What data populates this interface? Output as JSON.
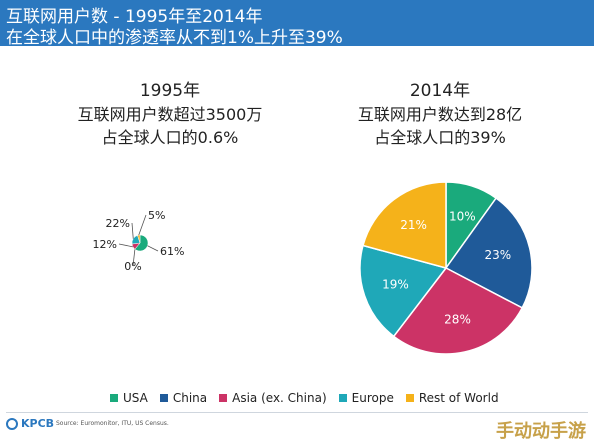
{
  "header": {
    "title_line1": "互联网用户数 - 1995年至2014年",
    "title_line2": "在全球人口中的渗透率从不到1%上升至39%"
  },
  "colors": {
    "header_bg": "#2b78bf",
    "USA": "#1aaa7c",
    "China": "#1f5a99",
    "Asia (ex. China)": "#cc3366",
    "Europe": "#1fa8b8",
    "Rest of World": "#f5b21a"
  },
  "chart_data": [
    {
      "type": "pie",
      "title": "1995年",
      "subtitle": [
        "互联网用户数超过3500万",
        "占全球人口的0.6%"
      ],
      "categories": [
        "USA",
        "China",
        "Asia (ex. China)",
        "Europe",
        "Rest of World"
      ],
      "values": [
        61,
        0,
        12,
        22,
        5
      ],
      "labels": [
        "61%",
        "0%",
        "12%",
        "22%",
        "5%"
      ]
    },
    {
      "type": "pie",
      "title": "2014年",
      "subtitle": [
        "互联网用户数达到28亿",
        "占全球人口的39%"
      ],
      "categories": [
        "USA",
        "China",
        "Asia (ex. China)",
        "Europe",
        "Rest of World"
      ],
      "values": [
        10,
        23,
        28,
        19,
        21
      ],
      "labels": [
        "10%",
        "23%",
        "28%",
        "19%",
        "21%"
      ]
    }
  ],
  "legend": {
    "entries": [
      "USA",
      "China",
      "Asia (ex. China)",
      "Europe",
      "Rest of World"
    ]
  },
  "footer": {
    "logo": "KPCB",
    "source": "Source: Euromonitor, ITU, US Census.",
    "watermark": "手动动手游"
  }
}
